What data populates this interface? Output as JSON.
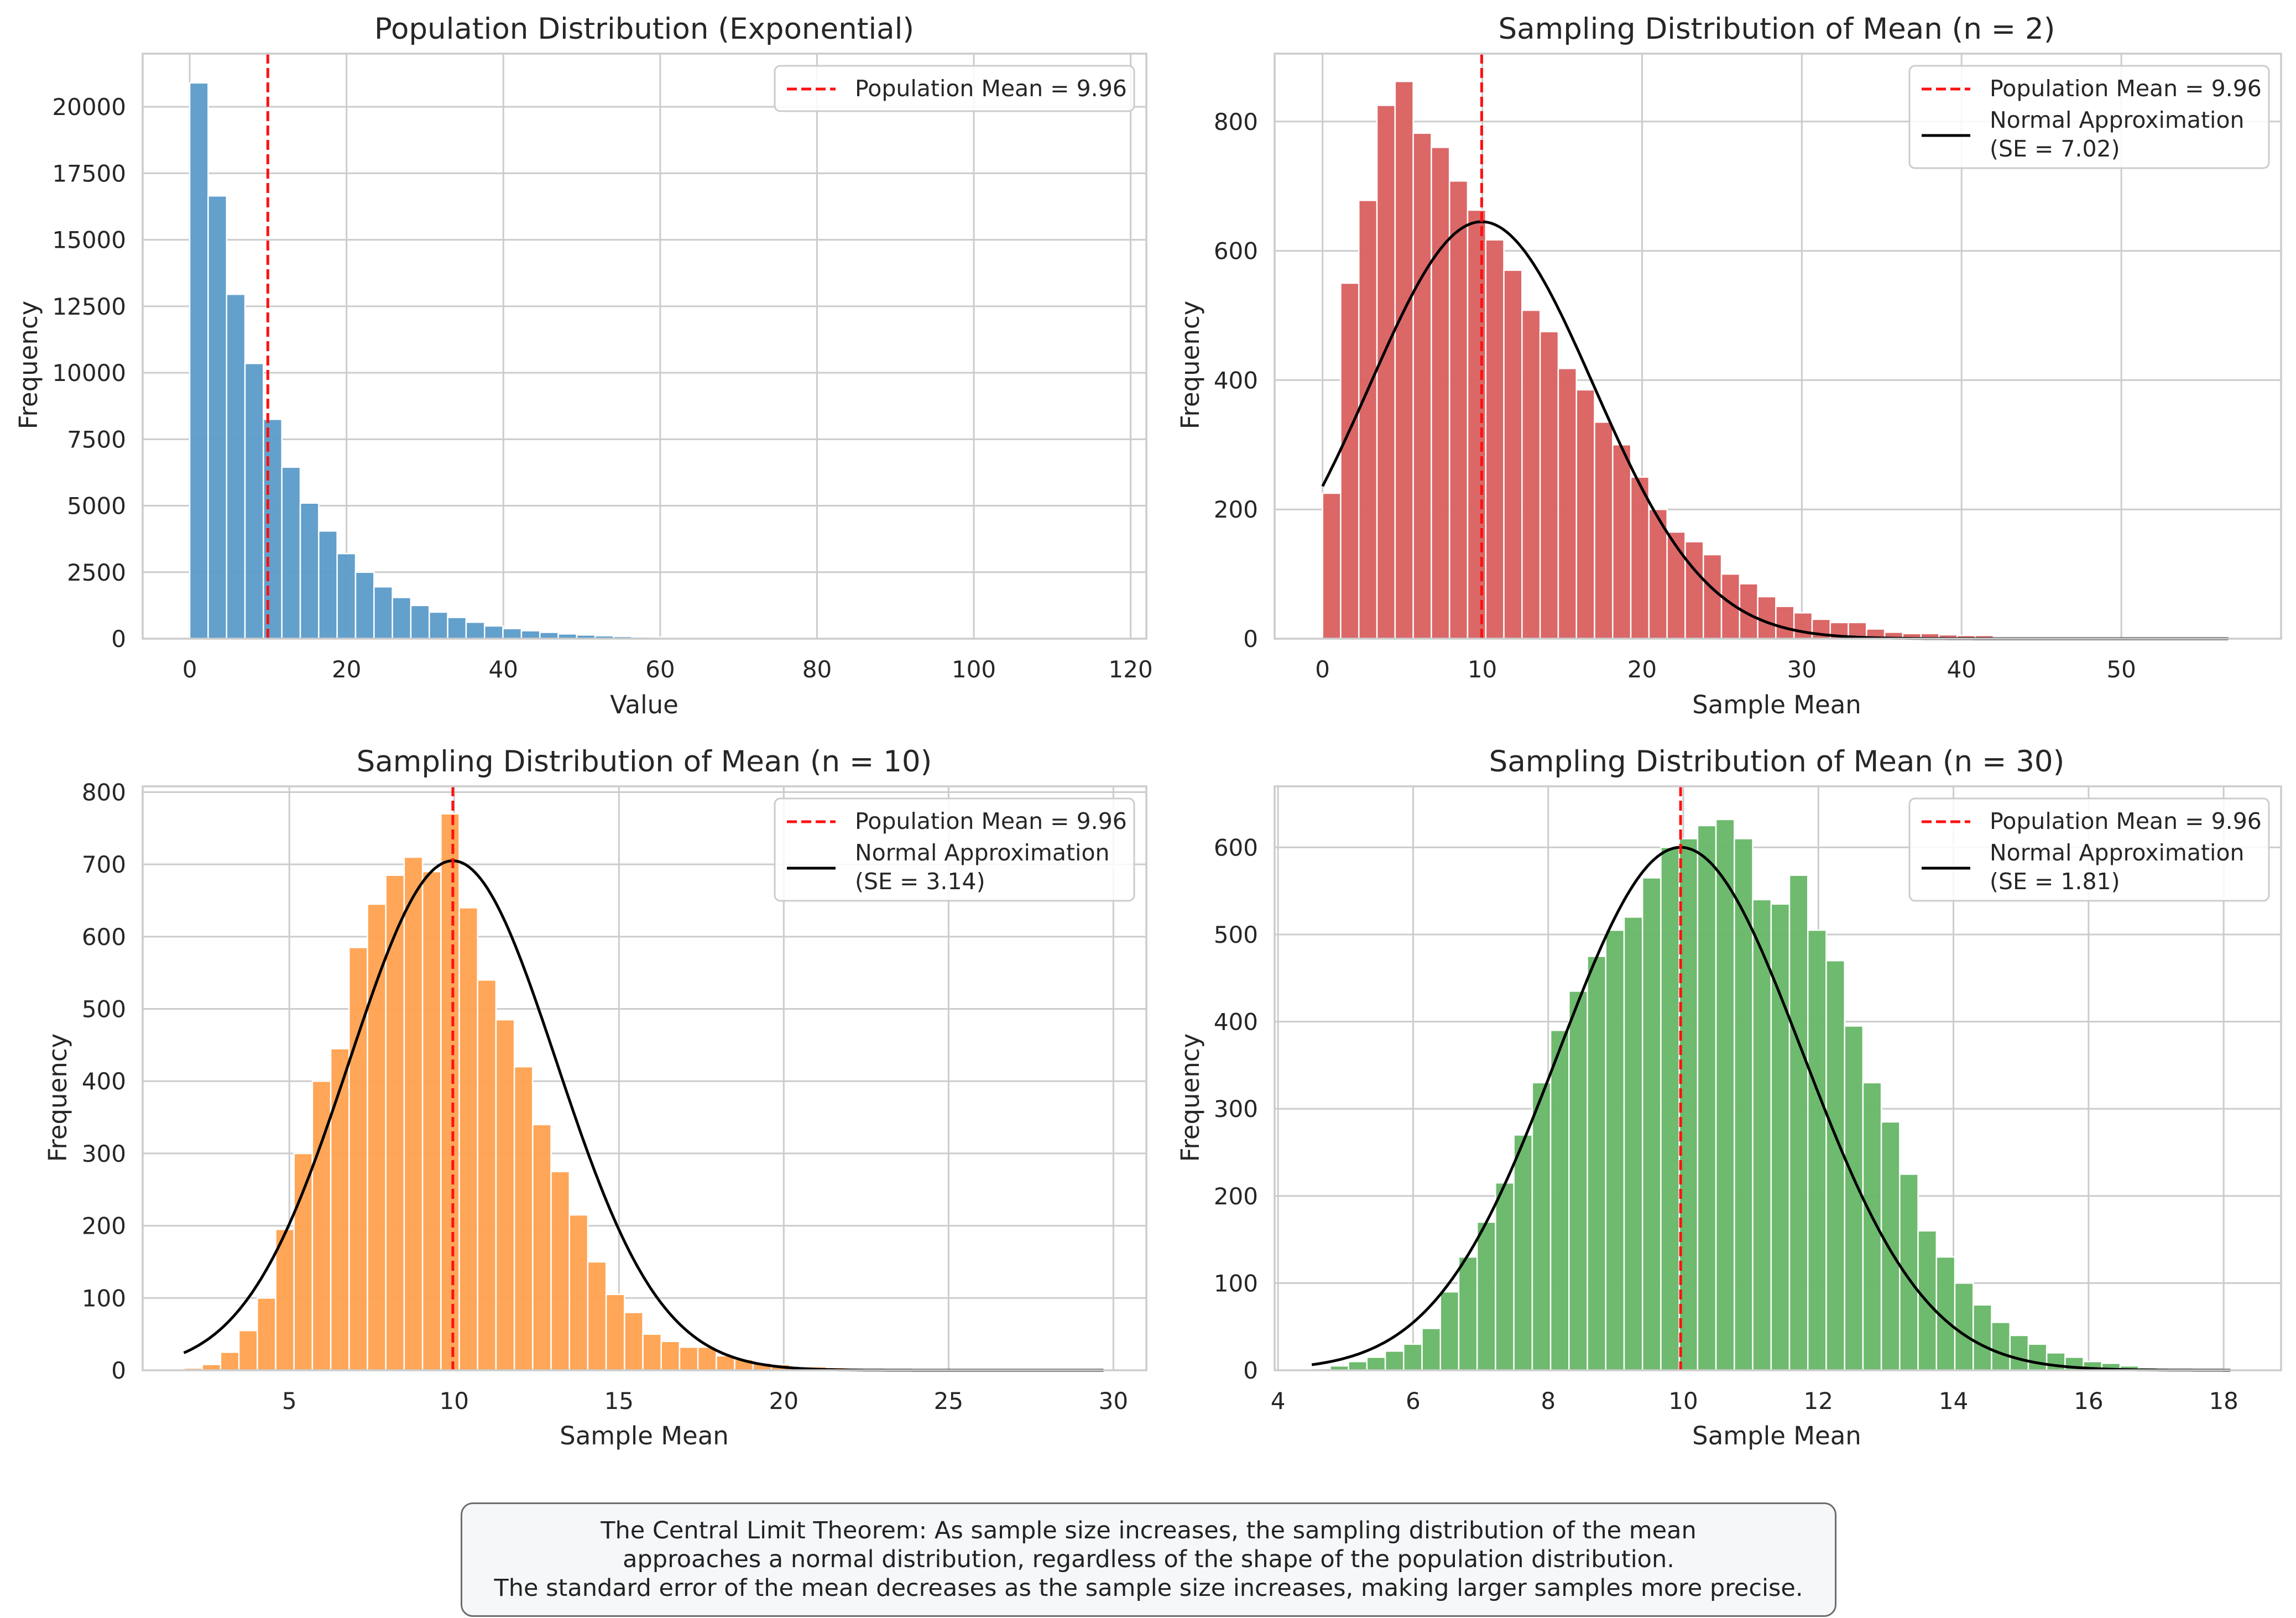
{
  "colors": {
    "population": "#5b9bc9",
    "n2": "#d95f5f",
    "n10": "#ffa14f",
    "n30": "#66b666",
    "mean_line": "#ff1010",
    "normal_curve": "#000000",
    "grid": "#cccccc",
    "axis_text": "#262626"
  },
  "legend_labels": {
    "population_mean": "Population Mean = 9.96",
    "normal_approx": "Normal Approximation",
    "se_n2": "(SE = 7.02)",
    "se_n10": "(SE = 3.14)",
    "se_n30": "(SE = 1.81)"
  },
  "caption": {
    "line1": "The Central Limit Theorem: As sample size increases, the sampling distribution of the mean",
    "line2": "approaches a normal distribution, regardless of the shape of the population distribution.",
    "line3": "The standard error of the mean decreases as the sample size increases, making larger samples more precise."
  },
  "chart_data": [
    {
      "type": "bar",
      "title": "Population Distribution (Exponential)",
      "xlabel": "Value",
      "ylabel": "Frequency",
      "xlim": [
        -6,
        122
      ],
      "ylim": [
        0,
        22000
      ],
      "xticks": [
        0,
        20,
        40,
        60,
        80,
        100,
        120
      ],
      "yticks": [
        0,
        2500,
        5000,
        7500,
        10000,
        12500,
        15000,
        17500,
        20000
      ],
      "bin_start": 0,
      "bin_width": 2.35,
      "values": [
        20900,
        16650,
        12950,
        10350,
        8250,
        6450,
        5100,
        4050,
        3200,
        2500,
        1950,
        1550,
        1250,
        1000,
        800,
        620,
        480,
        380,
        300,
        240,
        180,
        140,
        110,
        85,
        65,
        50,
        40,
        30,
        25,
        20,
        15,
        12,
        10,
        8,
        6,
        5,
        4,
        3,
        3,
        2,
        2,
        1,
        1,
        1,
        1,
        1,
        1,
        1,
        1,
        1
      ],
      "mean_line": 9.96,
      "legend": [
        "Population Mean = 9.96"
      ],
      "legend_position": "top-right"
    },
    {
      "type": "bar",
      "title": "Sampling Distribution of Mean (n = 2)",
      "xlabel": "Sample Mean",
      "ylabel": "Frequency",
      "xlim": [
        -3,
        60
      ],
      "ylim": [
        0,
        905
      ],
      "xticks": [
        0,
        10,
        20,
        30,
        40,
        50
      ],
      "yticks": [
        0,
        200,
        400,
        600,
        800
      ],
      "bin_start": 0,
      "bin_width": 1.135,
      "values": [
        225,
        550,
        678,
        825,
        862,
        782,
        760,
        708,
        663,
        617,
        570,
        508,
        475,
        418,
        385,
        335,
        300,
        250,
        200,
        165,
        150,
        130,
        100,
        85,
        65,
        50,
        40,
        30,
        25,
        25,
        15,
        10,
        8,
        8,
        6,
        5,
        5,
        3,
        3,
        2,
        2,
        1,
        1,
        1,
        1,
        1,
        1,
        1,
        1,
        1
      ],
      "mean_line": 9.96,
      "normal_curve": {
        "mean": 9.96,
        "se": 7.02,
        "peak": 645,
        "x_range": [
          0,
          56.7
        ]
      },
      "legend": [
        "Population Mean = 9.96",
        "Normal Approximation",
        "(SE = 7.02)"
      ],
      "legend_position": "top-right"
    },
    {
      "type": "bar",
      "title": "Sampling Distribution of Mean (n = 10)",
      "xlabel": "Sample Mean",
      "ylabel": "Frequency",
      "xlim": [
        0.55,
        31.0
      ],
      "ylim": [
        0,
        808
      ],
      "xticks": [
        5,
        10,
        15,
        20,
        25,
        30
      ],
      "yticks": [
        0,
        100,
        200,
        300,
        400,
        500,
        600,
        700,
        800
      ],
      "bin_start": 1.8,
      "bin_width": 0.557,
      "values": [
        3,
        8,
        25,
        55,
        100,
        195,
        300,
        400,
        445,
        585,
        645,
        685,
        710,
        690,
        770,
        640,
        540,
        485,
        420,
        340,
        275,
        215,
        150,
        105,
        80,
        50,
        40,
        32,
        32,
        20,
        15,
        10,
        8,
        5,
        5,
        4,
        3,
        2,
        2,
        1,
        1,
        1,
        1,
        1,
        1,
        1,
        1,
        1,
        1,
        1
      ],
      "mean_line": 9.96,
      "normal_curve": {
        "mean": 9.96,
        "se": 3.14,
        "peak": 705,
        "x_range": [
          1.8,
          29.7
        ]
      },
      "legend": [
        "Population Mean = 9.96",
        "Normal Approximation",
        "(SE = 3.14)"
      ],
      "legend_position": "top-right"
    },
    {
      "type": "bar",
      "title": "Sampling Distribution of Mean (n = 30)",
      "xlabel": "Sample Mean",
      "ylabel": "Frequency",
      "xlim": [
        3.95,
        18.85
      ],
      "ylim": [
        0,
        670
      ],
      "xticks": [
        4,
        6,
        8,
        10,
        12,
        14,
        16,
        18
      ],
      "yticks": [
        0,
        100,
        200,
        300,
        400,
        500,
        600
      ],
      "bin_start": 4.5,
      "bin_width": 0.272,
      "values": [
        2,
        5,
        10,
        15,
        22,
        30,
        48,
        90,
        130,
        170,
        215,
        270,
        330,
        390,
        435,
        475,
        505,
        520,
        565,
        600,
        610,
        625,
        632,
        610,
        540,
        535,
        568,
        505,
        470,
        395,
        330,
        285,
        225,
        160,
        130,
        100,
        75,
        55,
        40,
        30,
        20,
        15,
        10,
        8,
        5,
        3,
        2,
        1,
        1,
        1
      ],
      "mean_line": 9.96,
      "normal_curve": {
        "mean": 9.96,
        "se": 1.81,
        "peak": 600,
        "x_range": [
          4.5,
          18.1
        ]
      },
      "legend": [
        "Population Mean = 9.96",
        "Normal Approximation",
        "(SE = 1.81)"
      ],
      "legend_position": "top-right"
    }
  ]
}
